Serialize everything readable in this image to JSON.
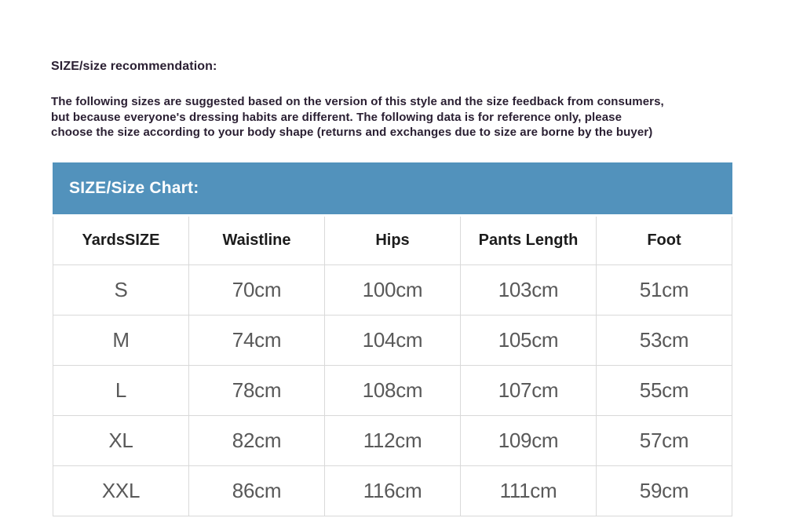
{
  "recommendation": {
    "heading": "SIZE/size recommendation:",
    "lines": [
      "The following sizes are suggested based on the version of this style and the size feedback from consumers,",
      "but because everyone's dressing habits are different. The following data is for reference only, please",
      "choose the size according to your body shape (returns and exchanges due to size are borne by the buyer)"
    ]
  },
  "size_chart": {
    "title": "SIZE/Size Chart:",
    "columns": [
      "YardsSIZE",
      "Waistline",
      "Hips",
      "Pants Length",
      "Foot"
    ],
    "rows": [
      {
        "size": "S",
        "waistline": "70cm",
        "hips": "100cm",
        "pants_length": "103cm",
        "foot": "51cm"
      },
      {
        "size": "M",
        "waistline": "74cm",
        "hips": "104cm",
        "pants_length": "105cm",
        "foot": "53cm"
      },
      {
        "size": "L",
        "waistline": "78cm",
        "hips": "108cm",
        "pants_length": "107cm",
        "foot": "55cm"
      },
      {
        "size": "XL",
        "waistline": "82cm",
        "hips": "112cm",
        "pants_length": "109cm",
        "foot": "57cm"
      },
      {
        "size": "XXL",
        "waistline": "86cm",
        "hips": "116cm",
        "pants_length": "111cm",
        "foot": "59cm"
      }
    ],
    "colors": {
      "header_bar_bg": "#5292bc",
      "header_bar_text": "#ffffff",
      "table_border": "#d9d9d9",
      "column_header_text": "#1c1c1c",
      "cell_text": "#595959",
      "body_text": "#2b2033"
    }
  }
}
